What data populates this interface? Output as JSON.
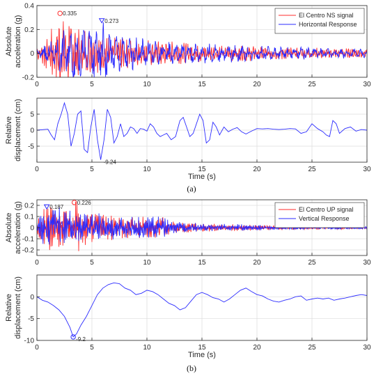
{
  "chart_data": [
    {
      "type": "line",
      "panel_caption": "(a)",
      "ylabel_lines": [
        "Absolute",
        "acceleration (g)"
      ],
      "xlabel": "",
      "xlim": [
        0,
        30
      ],
      "ylim": [
        -0.2,
        0.4
      ],
      "xticks": [
        0,
        5,
        10,
        15,
        20,
        25,
        30
      ],
      "yticks": [
        -0.2,
        0,
        0.2,
        0.4
      ],
      "ytick_labels": [
        "-0.2",
        "0",
        "0.2",
        "0.4"
      ],
      "grid": true,
      "legend": "top-right",
      "series": [
        {
          "name": "El Centro NS signal",
          "color": "#ff2b2b",
          "style": "noise",
          "envelope_x": [
            0,
            1,
            1.5,
            2,
            2.5,
            3,
            3.5,
            4,
            5,
            6,
            8,
            10,
            12,
            15,
            18,
            20,
            25,
            30
          ],
          "envelope_y": [
            0.05,
            0.12,
            0.2,
            0.28,
            0.22,
            0.24,
            0.2,
            0.18,
            0.15,
            0.12,
            0.1,
            0.09,
            0.08,
            0.06,
            0.05,
            0.05,
            0.04,
            0.03
          ],
          "period": 0.18
        },
        {
          "name": "Horizontal Response",
          "color": "#2b2bff",
          "style": "noise",
          "envelope_x": [
            0,
            1,
            2,
            3,
            4,
            5,
            6,
            7,
            8,
            10,
            12,
            15,
            18,
            20,
            25,
            30
          ],
          "envelope_y": [
            0.03,
            0.08,
            0.12,
            0.2,
            0.18,
            0.2,
            0.22,
            0.15,
            0.12,
            0.1,
            0.08,
            0.07,
            0.06,
            0.05,
            0.04,
            0.03
          ],
          "period": 0.6
        }
      ],
      "annotations": [
        {
          "x": 2.1,
          "y": 0.335,
          "text": "0.335",
          "marker": "circle",
          "color": "#ff2b2b"
        },
        {
          "x": 5.9,
          "y": 0.273,
          "text": "0.273",
          "marker": "triangle-down",
          "color": "#2b2bff"
        }
      ]
    },
    {
      "type": "line",
      "panel_caption": "",
      "ylabel_lines": [
        "Relative",
        "displacement (cm)"
      ],
      "xlabel": "Time  (s)",
      "xlim": [
        0,
        30
      ],
      "ylim": [
        -10,
        10
      ],
      "xticks": [
        0,
        5,
        10,
        15,
        20,
        25,
        30
      ],
      "yticks": [
        -5,
        0,
        5
      ],
      "ytick_labels": [
        "-5",
        "0",
        "5"
      ],
      "grid": true,
      "series": [
        {
          "name": "",
          "color": "#2b2bff",
          "x": [
            0,
            1.0,
            1.3,
            1.6,
            1.9,
            2.2,
            2.5,
            2.8,
            3.1,
            3.4,
            3.7,
            4.0,
            4.3,
            4.6,
            4.9,
            5.2,
            5.5,
            5.8,
            6.1,
            6.4,
            6.7,
            7.0,
            7.3,
            7.6,
            7.9,
            8.2,
            8.5,
            8.8,
            9.1,
            9.4,
            9.7,
            10.0,
            10.3,
            10.6,
            10.9,
            11.2,
            11.5,
            11.8,
            12.2,
            12.6,
            13.0,
            13.3,
            13.6,
            13.9,
            14.2,
            14.5,
            14.8,
            15.1,
            15.4,
            15.7,
            16.0,
            16.3,
            16.6,
            17.0,
            17.4,
            17.8,
            18.2,
            18.6,
            19.0,
            19.5,
            20.0,
            20.5,
            21.0,
            21.5,
            22.0,
            22.5,
            23.0,
            23.5,
            24.0,
            24.5,
            25.0,
            25.5,
            26.0,
            26.3,
            26.6,
            26.9,
            27.2,
            27.5,
            28.0,
            28.5,
            29.0,
            29.5,
            30.0
          ],
          "y": [
            0,
            0.3,
            -1.5,
            -3,
            2,
            5,
            8.5,
            5,
            -5,
            -1,
            5,
            6,
            -6,
            -7,
            1,
            6.5,
            -3,
            -9.24,
            -3,
            6.5,
            4,
            -4,
            -2,
            2,
            -2,
            -1,
            1,
            0.5,
            -1,
            0.5,
            0.3,
            -0.3,
            2,
            1,
            -1,
            -2,
            -1.5,
            -1,
            -3,
            -2,
            3,
            4,
            1,
            -2,
            -1,
            2,
            5,
            3,
            -4,
            -3,
            2.5,
            1,
            -1.5,
            1,
            -0.5,
            0.3,
            0.8,
            -0.5,
            -1.2,
            -0.3,
            0.5,
            0.4,
            0.5,
            0.3,
            0.2,
            0.3,
            0.5,
            0.4,
            -1,
            -0.5,
            2,
            0.5,
            -0.5,
            -1.5,
            -2,
            3,
            2,
            -1,
            0.5,
            1,
            -0.3,
            0.2,
            0
          ]
        }
      ],
      "annotations": [
        {
          "x": 5.8,
          "y": -9.24,
          "text": "-9.24",
          "marker": "none",
          "color": "#2b2bff"
        }
      ]
    },
    {
      "type": "line",
      "panel_caption": "",
      "ylabel_lines": [
        "Absolute",
        "acceleration (g)"
      ],
      "xlabel": "",
      "xlim": [
        0,
        30
      ],
      "ylim": [
        -0.25,
        0.25
      ],
      "xticks": [
        0,
        5,
        10,
        15,
        20,
        25,
        30
      ],
      "yticks": [
        -0.2,
        -0.1,
        0,
        0.1,
        0.2
      ],
      "ytick_labels": [
        "-0.2",
        "-0.1",
        "0",
        "0.1",
        "0.2"
      ],
      "grid": true,
      "legend": "top-right",
      "series": [
        {
          "name": "El Centro UP signal",
          "color": "#ff2b2b",
          "style": "noise",
          "envelope_x": [
            0,
            0.5,
            1,
            2,
            3,
            3.5,
            4,
            5,
            6,
            8,
            10,
            11.5,
            12,
            13,
            15,
            18,
            20,
            25,
            30
          ],
          "envelope_y": [
            0.05,
            0.12,
            0.18,
            0.15,
            0.14,
            0.22,
            0.15,
            0.12,
            0.1,
            0.09,
            0.08,
            0.08,
            0.05,
            0.04,
            0.03,
            0.025,
            0.02,
            0.015,
            0.01
          ],
          "period": 0.12
        },
        {
          "name": "Vertical Response",
          "color": "#2b2bff",
          "style": "noise",
          "envelope_x": [
            0,
            0.5,
            1,
            2,
            3,
            4,
            5,
            6,
            8,
            10,
            11.5,
            12,
            13,
            15,
            18,
            20,
            25,
            30
          ],
          "envelope_y": [
            0.05,
            0.14,
            0.19,
            0.15,
            0.13,
            0.13,
            0.11,
            0.1,
            0.09,
            0.08,
            0.08,
            0.05,
            0.04,
            0.03,
            0.025,
            0.02,
            0.015,
            0.01
          ],
          "period": 0.12
        }
      ],
      "annotations": [
        {
          "x": 0.9,
          "y": 0.187,
          "text": "0.187",
          "marker": "triangle-down",
          "color": "#2b2bff"
        },
        {
          "x": 3.4,
          "y": 0.226,
          "text": "0.226",
          "marker": "circle",
          "color": "#ff2b2b"
        }
      ]
    },
    {
      "type": "line",
      "panel_caption": "(b)",
      "ylabel_lines": [
        "Relative",
        "displacement (cm)"
      ],
      "xlabel": "Time  (s)",
      "xlim": [
        0,
        30
      ],
      "ylim": [
        -10,
        5
      ],
      "xticks": [
        0,
        5,
        10,
        15,
        20,
        25,
        30
      ],
      "yticks": [
        -10,
        -5,
        0
      ],
      "ytick_labels": [
        "-10",
        "-5",
        "0"
      ],
      "grid": true,
      "series": [
        {
          "name": "",
          "color": "#2b2bff",
          "x": [
            0,
            0.5,
            1,
            1.5,
            2,
            2.5,
            3,
            3.3,
            3.6,
            4,
            4.5,
            5,
            5.5,
            6,
            6.5,
            7,
            7.5,
            8,
            8.5,
            9,
            9.5,
            10,
            10.5,
            11,
            11.5,
            12,
            12.5,
            13,
            13.5,
            14,
            14.5,
            15,
            15.5,
            16,
            16.5,
            17,
            17.5,
            18,
            18.5,
            19,
            19.5,
            20,
            20.5,
            21,
            21.5,
            22,
            22.5,
            23,
            23.5,
            24,
            24.5,
            25,
            25.5,
            26,
            26.5,
            27,
            27.5,
            28,
            28.5,
            29,
            29.5,
            30
          ],
          "y": [
            0,
            -0.8,
            -1.2,
            -2,
            -3,
            -4.5,
            -7,
            -9.2,
            -8.5,
            -6.5,
            -4.5,
            -2,
            0.5,
            2,
            2.8,
            3.2,
            3,
            2,
            1.5,
            0.5,
            0.8,
            1.5,
            1.2,
            0.5,
            -0.5,
            -1.5,
            -2,
            -3,
            -2.5,
            -1,
            0.5,
            1,
            0.5,
            -0.2,
            -0.5,
            -1.2,
            -0.5,
            0.5,
            1.5,
            2,
            1.2,
            0.5,
            0.2,
            -0.5,
            -1,
            -1.2,
            -0.8,
            -0.5,
            0,
            0.2,
            -0.8,
            -0.5,
            -0.3,
            -0.5,
            -0.3,
            -0.8,
            -0.5,
            -0.3,
            0,
            0.3,
            0.5,
            0.3
          ]
        }
      ],
      "annotations": [
        {
          "x": 3.3,
          "y": -9.2,
          "text": "-9.2",
          "marker": "circle",
          "color": "#2b2bff"
        }
      ]
    }
  ]
}
